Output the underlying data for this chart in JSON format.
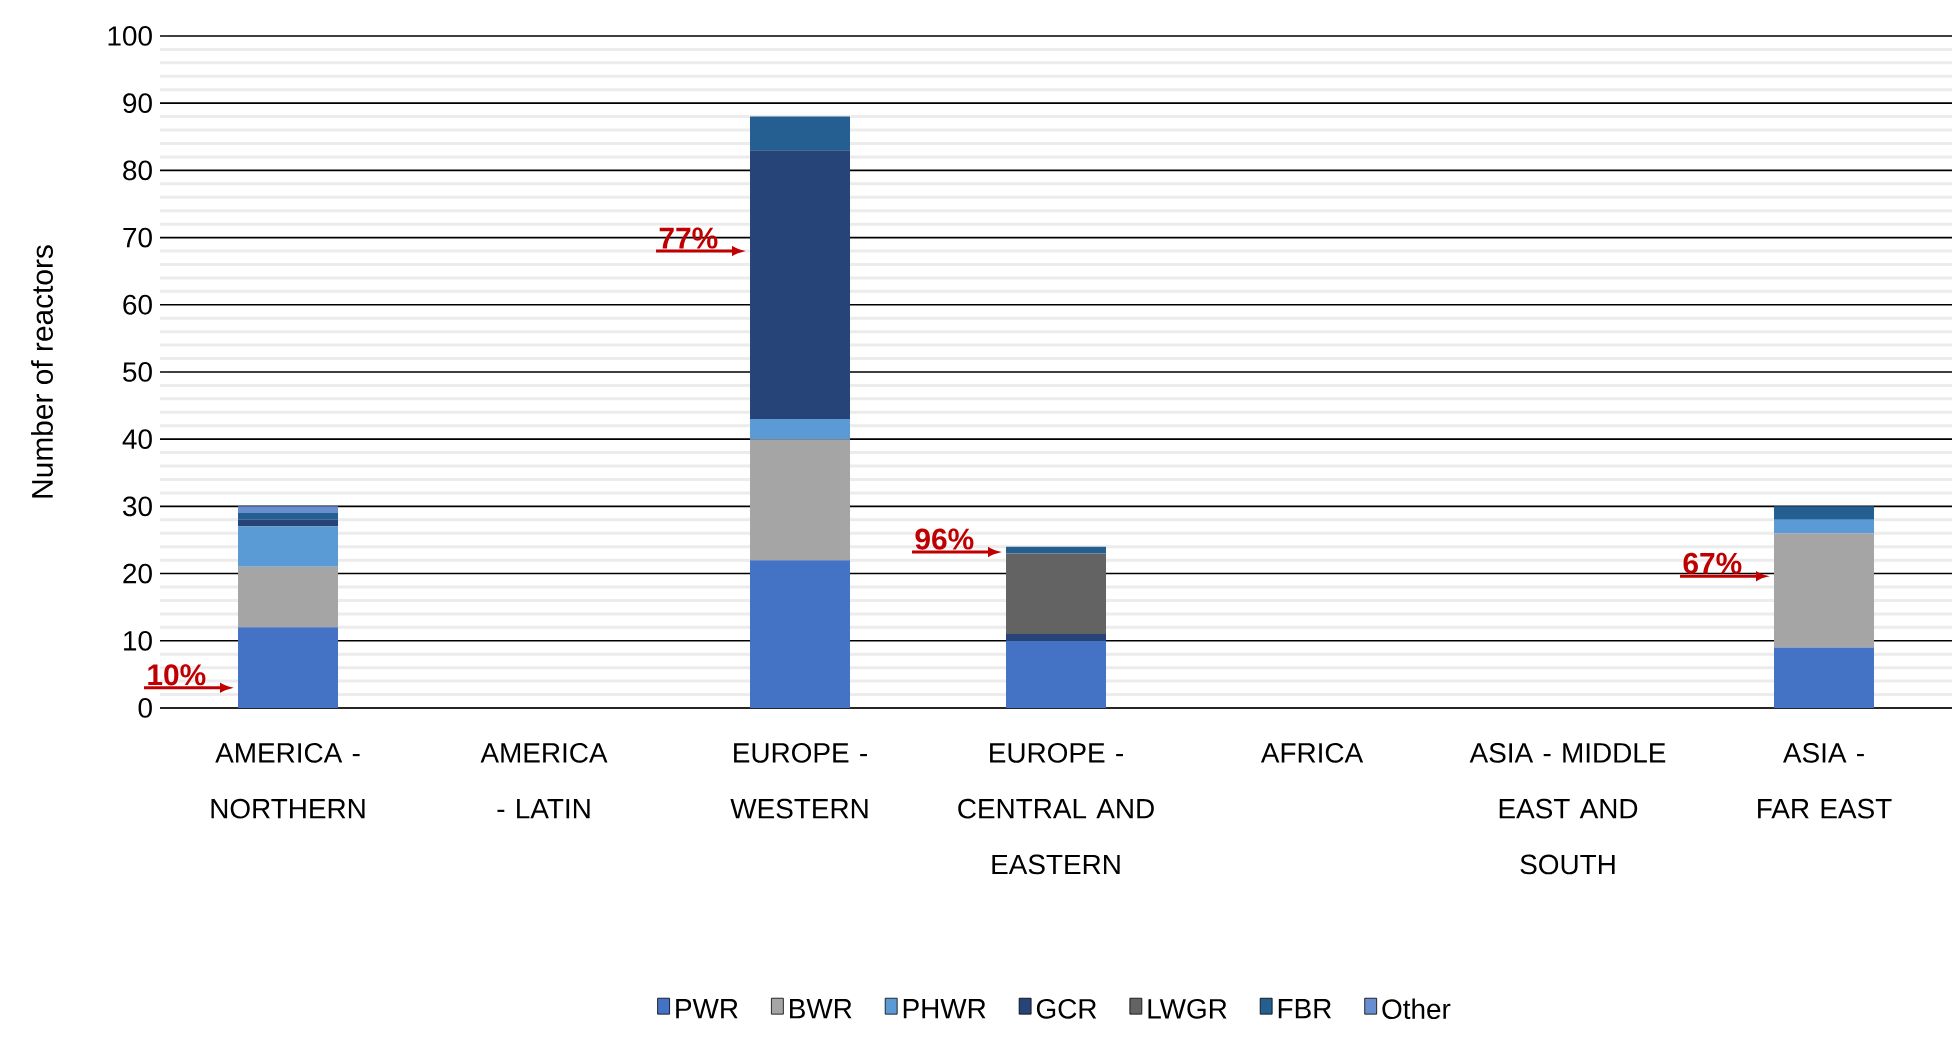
{
  "chart_data": {
    "type": "bar",
    "stacked": true,
    "ylabel": "Number of reactors",
    "categories": [
      "AMERICA - NORTHERN",
      "AMERICA - LATIN",
      "EUROPE - WESTERN",
      "EUROPE - CENTRAL AND EASTERN",
      "AFRICA",
      "ASIA - MIDDLE EAST AND SOUTH",
      "ASIA - FAR EAST"
    ],
    "series": [
      {
        "name": "PWR",
        "color": "#4472c4",
        "values": [
          12,
          0,
          22,
          10,
          0,
          0,
          9
        ]
      },
      {
        "name": "BWR",
        "color": "#a5a5a5",
        "values": [
          9,
          0,
          18,
          0,
          0,
          0,
          17
        ]
      },
      {
        "name": "PHWR",
        "color": "#5b9bd5",
        "values": [
          6,
          0,
          3,
          0,
          0,
          0,
          2
        ]
      },
      {
        "name": "GCR",
        "color": "#264478",
        "values": [
          1,
          0,
          40,
          1,
          0,
          0,
          0
        ]
      },
      {
        "name": "LWGR",
        "color": "#636363",
        "values": [
          0,
          0,
          0,
          12,
          0,
          0,
          0
        ]
      },
      {
        "name": "FBR",
        "color": "#255e91",
        "values": [
          1,
          0,
          5,
          1,
          0,
          0,
          2
        ]
      },
      {
        "name": "Other",
        "color": "#698ed0",
        "values": [
          1,
          0,
          0,
          0,
          0,
          0,
          0
        ]
      }
    ],
    "ylim": [
      0,
      100
    ],
    "yticks": [
      0,
      10,
      20,
      30,
      40,
      50,
      60,
      70,
      80,
      90,
      100
    ],
    "grid": "y",
    "legend": "bottom",
    "annotations": [
      "10%",
      "77%",
      "96%",
      "67%"
    ]
  }
}
